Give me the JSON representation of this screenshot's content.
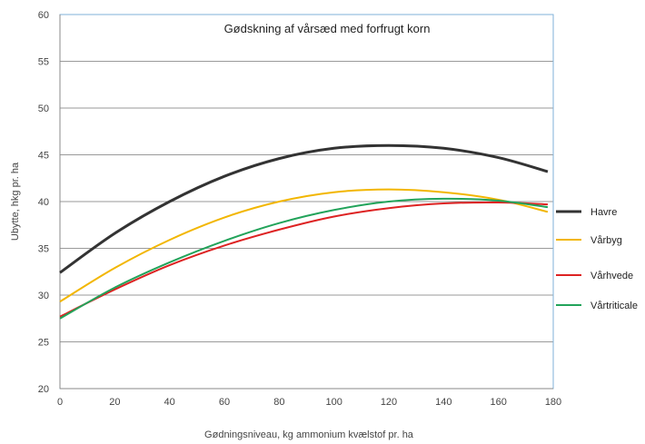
{
  "chart_data": {
    "type": "line",
    "title": "Gødskning af vårsæd med forfrugt korn",
    "xlabel": "Gødningsniveau, kg ammonium kvælstof pr. ha",
    "ylabel": "Ubytte, hkg pr. ha",
    "xlim": [
      0,
      180
    ],
    "ylim": [
      20,
      60
    ],
    "xticks": [
      "0",
      "20",
      "40",
      "60",
      "80",
      "100",
      "120",
      "140",
      "160",
      "180"
    ],
    "yticks": [
      "20",
      "25",
      "30",
      "35",
      "40",
      "45",
      "50",
      "55",
      "60"
    ],
    "grid": "horizontal",
    "legend_position": "right",
    "x": [
      0,
      20,
      40,
      60,
      80,
      100,
      120,
      140,
      160,
      178
    ],
    "series": [
      {
        "name": "Havre",
        "color": "#333333",
        "values": [
          32.4,
          36.6,
          40.0,
          42.7,
          44.6,
          45.7,
          46.0,
          45.7,
          44.7,
          43.2
        ]
      },
      {
        "name": "Vårbyg",
        "color": "#f2b600",
        "values": [
          29.3,
          32.9,
          35.9,
          38.3,
          40.0,
          41.0,
          41.3,
          41.0,
          40.2,
          38.9
        ]
      },
      {
        "name": "Vårhvede",
        "color": "#dd2222",
        "values": [
          27.7,
          30.6,
          33.2,
          35.3,
          37.0,
          38.4,
          39.3,
          39.8,
          39.9,
          39.7
        ]
      },
      {
        "name": "Vårtriticale",
        "color": "#22a35a",
        "values": [
          27.5,
          30.8,
          33.5,
          35.8,
          37.7,
          39.1,
          40.0,
          40.3,
          40.1,
          39.4
        ]
      }
    ]
  }
}
